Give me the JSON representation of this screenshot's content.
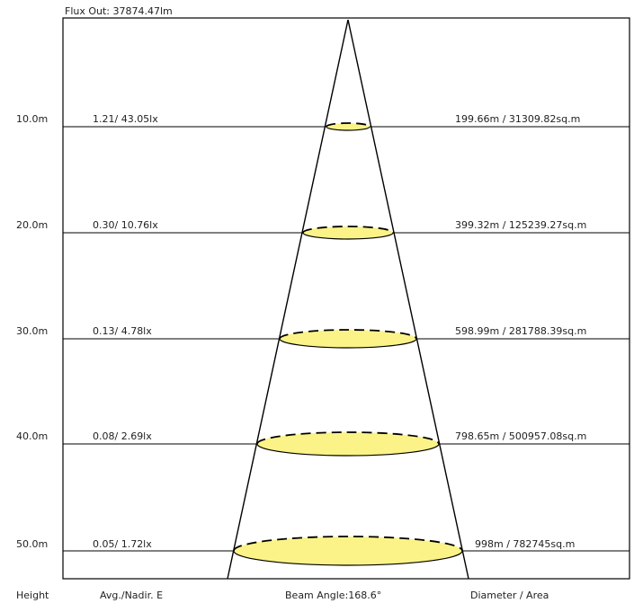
{
  "flux_out": "Flux Out: 37874.47lm",
  "levels": [
    {
      "height": "10.0m",
      "illuminance": "1.21/ 43.05lx",
      "diameter_area": "199.66m / 31309.82sq.m"
    },
    {
      "height": "20.0m",
      "illuminance": "0.30/ 10.76lx",
      "diameter_area": "399.32m / 125239.27sq.m"
    },
    {
      "height": "30.0m",
      "illuminance": "0.13/ 4.78lx",
      "diameter_area": "598.99m / 281788.39sq.m"
    },
    {
      "height": "40.0m",
      "illuminance": "0.08/ 2.69lx",
      "diameter_area": "798.65m / 500957.08sq.m"
    },
    {
      "height": "50.0m",
      "illuminance": "0.05/ 1.72lx",
      "diameter_area": "998m / 782745sq.m"
    }
  ],
  "footer": {
    "height_label": "Height",
    "illuminance_label": "Avg./Nadir. E",
    "beam_angle": "Beam Angle:168.6°",
    "diameter_label": "Diameter / Area"
  },
  "colors": {
    "disk_fill": "#fbf387",
    "line": "#000000"
  }
}
